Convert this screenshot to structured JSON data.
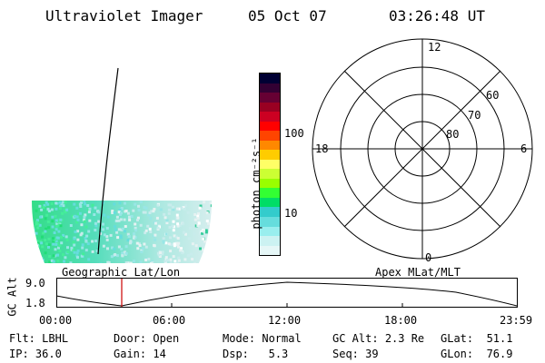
{
  "header": {
    "instrument": "Ultraviolet Imager",
    "date": "05 Oct 07",
    "time": "03:26:48 UT"
  },
  "colorbar": {
    "unit_label": "photon cm⁻²s⁻¹",
    "tick_labels": [
      "100",
      "10"
    ],
    "colors": [
      "#000033",
      "#330033",
      "#660033",
      "#990022",
      "#cc0022",
      "#ff0000",
      "#ff4400",
      "#ff8800",
      "#ffcc00",
      "#ffff66",
      "#ccff33",
      "#99ff00",
      "#33ff33",
      "#00dd66",
      "#33cccc",
      "#66dddd",
      "#99eeee",
      "#ccf2f2",
      "#e6f7f7"
    ]
  },
  "polar_plot": {
    "mlt_labels": {
      "top": "12",
      "left": "18",
      "right": "6",
      "bottom": "0"
    },
    "lat_labels": [
      "60",
      "70",
      "80"
    ]
  },
  "timeline": {
    "left_title": "Geographic Lat/Lon",
    "right_title": "Apex MLat/MLT",
    "axis_title": "GC Alt",
    "y_tick_labels": [
      "9.0",
      "1.8"
    ],
    "x_tick_labels": [
      "00:00",
      "06:00",
      "12:00",
      "18:00",
      "23:59"
    ],
    "marker_color": "#cc0000"
  },
  "status": {
    "flt_label": "Flt:",
    "flt_value": "LBHL",
    "ip_label": "IP:",
    "ip_value": "36.0",
    "door_label": "Door:",
    "door_value": "Open",
    "gain_label": "Gain:",
    "gain_value": "14",
    "mode_label": "Mode:",
    "mode_value": "Normal",
    "dsp_label": "Dsp:",
    "dsp_value": "5.3",
    "gcalt_label": "GC Alt:",
    "gcalt_value": "2.3 Re",
    "seq_label": "Seq:",
    "seq_value": "39",
    "glat_label": "GLat:",
    "glat_value": "51.1",
    "glon_label": "GLon:",
    "glon_value": "76.9"
  }
}
